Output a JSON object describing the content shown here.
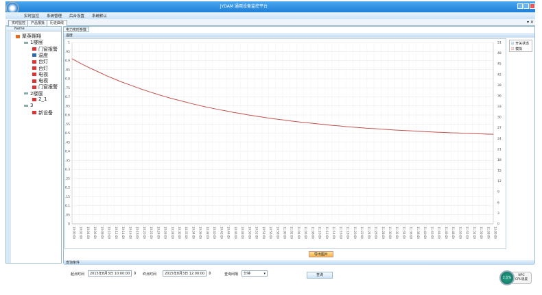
{
  "app": {
    "title": "JYDAM 通用设备监控平台"
  },
  "menu": [
    "实时监控",
    "系统管理",
    "后台设置",
    "系统默认"
  ],
  "tabs": [
    "实时监控",
    "产品报批",
    "历史曲线"
  ],
  "tree": {
    "header": "Name",
    "nodes": [
      {
        "label": "聚英翱翔",
        "level": 0,
        "icon": "root-icon"
      },
      {
        "label": "1楼层",
        "level": 1,
        "icon": "floor-icon"
      },
      {
        "label": "门窗报警",
        "level": 2,
        "icon": "device-icon"
      },
      {
        "label": "温度",
        "level": 2,
        "icon": "sensor-icon"
      },
      {
        "label": "台灯",
        "level": 2,
        "icon": "device-icon"
      },
      {
        "label": "台灯",
        "level": 2,
        "icon": "device-icon"
      },
      {
        "label": "电视",
        "level": 2,
        "icon": "device-icon"
      },
      {
        "label": "电视",
        "level": 2,
        "icon": "device-icon"
      },
      {
        "label": "门窗报警",
        "level": 2,
        "icon": "device-icon"
      },
      {
        "label": "2楼层",
        "level": 1,
        "icon": "floor-icon"
      },
      {
        "label": "2_1",
        "level": 2,
        "icon": "device-icon"
      },
      {
        "label": "3",
        "level": 1,
        "icon": "floor-icon"
      },
      {
        "label": "新设备",
        "level": 2,
        "icon": "device-icon"
      }
    ]
  },
  "chart_tab": "电力实时参数",
  "chart_header": "温度",
  "chart_data": {
    "type": "line",
    "ylim": [
      0,
      1
    ],
    "yticks_step": 0.05,
    "y2lim": [
      0,
      51
    ],
    "y2ticks_step": 3,
    "grid": true,
    "legend": {
      "placement": "top-right",
      "entries": [
        {
          "label": "开关状态",
          "checked": true,
          "color": "#3a6fc4"
        },
        {
          "label": "模拟",
          "checked": true,
          "color": "#c0504d"
        }
      ]
    },
    "series": [
      {
        "color": "#c0504d",
        "values": [
          0.91,
          0.889,
          0.869,
          0.851,
          0.833,
          0.815,
          0.799,
          0.783,
          0.769,
          0.755,
          0.741,
          0.728,
          0.716,
          0.704,
          0.693,
          0.683,
          0.673,
          0.663,
          0.654,
          0.645,
          0.637,
          0.629,
          0.622,
          0.614,
          0.608,
          0.601,
          0.595,
          0.589,
          0.583,
          0.578,
          0.573,
          0.568,
          0.563,
          0.559,
          0.555,
          0.551,
          0.547,
          0.543,
          0.54,
          0.536,
          0.533,
          0.53,
          0.527,
          0.525,
          0.522,
          0.52,
          0.517,
          0.515,
          0.513,
          0.511,
          0.509,
          0.507,
          0.505,
          0.504,
          0.502,
          0.501,
          0.499,
          0.498,
          0.496,
          0.495,
          0.494
        ]
      }
    ],
    "x": [
      "10:00:00",
      "10:02:00",
      "10:04:00",
      "10:06:00",
      "10:08:00",
      "10:10:00",
      "10:12:00",
      "10:14:00",
      "10:16:00",
      "10:18:00",
      "10:20:00",
      "10:22:00",
      "10:24:00",
      "10:26:00",
      "10:28:00",
      "10:30:00",
      "10:32:00",
      "10:34:00",
      "10:36:00",
      "10:38:00",
      "10:40:00",
      "10:42:00",
      "10:44:00",
      "10:46:00",
      "10:48:00",
      "10:50:00",
      "10:52:00",
      "10:54:00",
      "10:56:00",
      "10:58:00",
      "11:00:00",
      "11:02:00",
      "11:04:00",
      "11:06:00",
      "11:08:00",
      "11:10:00",
      "11:12:00",
      "11:14:00",
      "11:16:00",
      "11:18:00",
      "11:20:00",
      "11:22:00",
      "11:24:00",
      "11:26:00",
      "11:28:00",
      "11:30:00",
      "11:32:00",
      "11:34:00",
      "11:36:00",
      "11:38:00",
      "11:40:00",
      "11:42:00",
      "11:44:00",
      "11:46:00",
      "11:48:00",
      "11:50:00",
      "11:52:00",
      "11:54:00",
      "11:56:00",
      "11:58:00",
      "12:00:00"
    ]
  },
  "export_label": "导出图片",
  "query": {
    "header": "查询条件",
    "start_label": "起点时间",
    "start_value": "2015年8月3日 10:00:00",
    "end_label": "终点时间",
    "end_value": "2015年8月3日 12:00:00",
    "interval_label": "查询间隔",
    "interval_value": "分钟",
    "button": "查询"
  },
  "gauge": {
    "value": "2.1%",
    "unit": "NPC",
    "label": "CPU温度"
  }
}
